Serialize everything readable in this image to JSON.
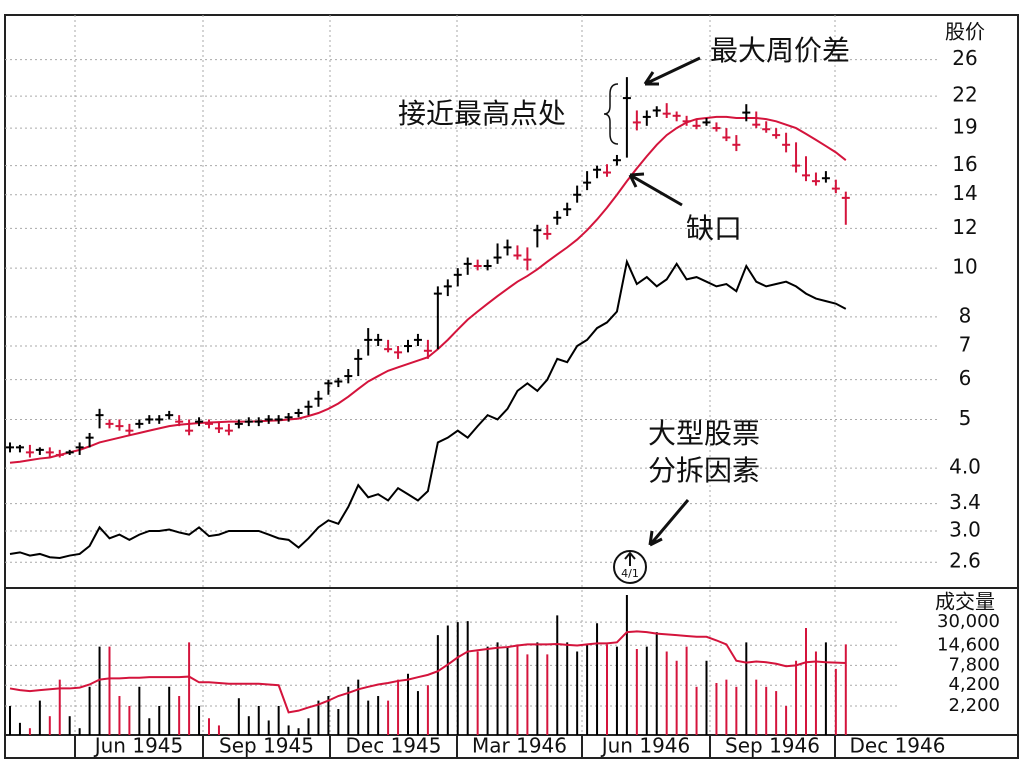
{
  "chart_data": {
    "type": "stock",
    "price_label": "股价",
    "volume_label": "成交量",
    "annotations": {
      "widest_week": "最大周价差",
      "near_high": "接近最高点处",
      "gap": "缺口",
      "split_1": "大型股票",
      "split_2": "分拆因素",
      "split_mark": "4/1"
    },
    "xticks": [
      "Jun 1945",
      "Sep 1945",
      "Dec 1945",
      "Mar 1946",
      "Jun 1946",
      "Sep 1946",
      "Dec 1946"
    ],
    "log_scale": true,
    "grid": true,
    "up_color": "#000000",
    "down_color": "#d4143c",
    "ma_color": "#d4143c",
    "rs_color": "#000000",
    "ylim": [
      2.31,
      31.9
    ],
    "yticks": [
      26,
      22,
      19,
      16,
      14,
      12,
      10,
      8,
      7,
      6,
      5,
      {
        "value": 4,
        "label": "4.0"
      },
      3.4,
      {
        "value": 3,
        "label": "3.0"
      },
      2.6
    ],
    "close": [
      4.4,
      4.4,
      4.3,
      4.35,
      4.3,
      4.25,
      4.3,
      4.4,
      4.6,
      5.1,
      4.9,
      4.85,
      4.75,
      4.9,
      5.0,
      5.0,
      5.1,
      4.95,
      4.75,
      4.95,
      4.9,
      4.8,
      4.75,
      4.9,
      4.95,
      4.95,
      5.0,
      5.0,
      5.05,
      5.15,
      5.3,
      5.5,
      5.9,
      5.95,
      6.1,
      6.6,
      7.2,
      7.2,
      6.9,
      6.8,
      7.0,
      7.2,
      6.85,
      8.9,
      9.2,
      9.7,
      10.2,
      10.1,
      10.1,
      10.5,
      11.0,
      10.6,
      10.4,
      11.9,
      11.7,
      12.6,
      13.1,
      14.0,
      14.8,
      15.7,
      15.5,
      16.4,
      21.8,
      19.5,
      20.0,
      20.6,
      20.3,
      20.1,
      19.6,
      19.2,
      19.5,
      19.0,
      18.2,
      17.6,
      20.4,
      19.3,
      18.9,
      18.4,
      17.6,
      16.0,
      15.3,
      14.9,
      15.1,
      14.4,
      13.8
    ],
    "high": [
      4.5,
      4.45,
      4.45,
      4.4,
      4.4,
      4.35,
      4.35,
      4.5,
      4.7,
      5.25,
      5.0,
      5.0,
      4.9,
      5.0,
      5.1,
      5.1,
      5.2,
      5.1,
      5.0,
      5.05,
      5.0,
      4.95,
      4.9,
      5.0,
      5.05,
      5.05,
      5.1,
      5.1,
      5.15,
      5.25,
      5.45,
      5.7,
      6.0,
      6.05,
      6.3,
      6.9,
      7.6,
      7.4,
      7.2,
      7.0,
      7.2,
      7.4,
      7.2,
      9.2,
      9.5,
      10.0,
      10.5,
      10.4,
      10.4,
      11.2,
      11.4,
      11.1,
      11.0,
      12.2,
      12.2,
      13.0,
      13.5,
      14.6,
      15.6,
      16.0,
      16.1,
      16.8,
      24.0,
      20.6,
      20.6,
      21.0,
      21.3,
      20.5,
      20.1,
      19.8,
      19.9,
      19.5,
      19.0,
      18.4,
      21.2,
      20.5,
      19.6,
      19.0,
      18.6,
      17.8,
      16.7,
      15.5,
      15.6,
      15.0,
      14.2
    ],
    "low": [
      4.3,
      4.3,
      4.2,
      4.25,
      4.2,
      4.2,
      4.25,
      4.25,
      4.4,
      4.8,
      4.8,
      4.75,
      4.65,
      4.8,
      4.9,
      4.9,
      5.0,
      4.85,
      4.65,
      4.85,
      4.8,
      4.7,
      4.65,
      4.8,
      4.85,
      4.85,
      4.9,
      4.9,
      4.95,
      5.05,
      5.1,
      5.3,
      5.6,
      5.8,
      5.9,
      6.1,
      6.7,
      7.0,
      6.8,
      6.6,
      6.8,
      7.0,
      6.6,
      6.9,
      8.8,
      9.2,
      9.7,
      9.9,
      9.9,
      10.2,
      10.6,
      10.4,
      9.9,
      11.0,
      11.4,
      12.2,
      12.7,
      13.5,
      14.3,
      15.1,
      15.2,
      16.0,
      16.6,
      18.8,
      19.2,
      20.0,
      19.9,
      19.6,
      19.2,
      18.9,
      19.2,
      18.7,
      17.9,
      17.1,
      19.6,
      19.0,
      18.6,
      18.1,
      17.0,
      15.5,
      14.9,
      14.6,
      14.8,
      14.1,
      12.2
    ],
    "ma": [
      4.1,
      4.12,
      4.15,
      4.18,
      4.2,
      4.25,
      4.3,
      4.35,
      4.42,
      4.5,
      4.55,
      4.6,
      4.65,
      4.7,
      4.75,
      4.8,
      4.85,
      4.88,
      4.9,
      4.92,
      4.93,
      4.94,
      4.95,
      4.95,
      4.95,
      4.96,
      4.97,
      4.98,
      5.0,
      5.02,
      5.08,
      5.15,
      5.25,
      5.38,
      5.55,
      5.75,
      5.95,
      6.1,
      6.25,
      6.35,
      6.45,
      6.55,
      6.65,
      6.9,
      7.2,
      7.55,
      7.9,
      8.2,
      8.5,
      8.8,
      9.1,
      9.4,
      9.65,
      9.95,
      10.3,
      10.65,
      11.0,
      11.4,
      11.9,
      12.5,
      13.2,
      14.0,
      14.9,
      15.8,
      16.7,
      17.6,
      18.4,
      19.0,
      19.5,
      19.8,
      19.9,
      20.0,
      20.0,
      19.9,
      19.9,
      19.9,
      19.8,
      19.6,
      19.3,
      19.0,
      18.5,
      18.0,
      17.5,
      17.0,
      16.4
    ],
    "rs": [
      2.7,
      2.72,
      2.68,
      2.7,
      2.66,
      2.65,
      2.68,
      2.7,
      2.8,
      3.05,
      2.9,
      2.95,
      2.88,
      2.95,
      3.0,
      3.0,
      3.02,
      2.98,
      2.95,
      3.05,
      2.93,
      2.95,
      3.0,
      3.0,
      3.0,
      3.0,
      2.95,
      2.9,
      2.88,
      2.78,
      2.9,
      3.05,
      3.15,
      3.1,
      3.35,
      3.7,
      3.5,
      3.55,
      3.45,
      3.65,
      3.55,
      3.45,
      3.6,
      4.5,
      4.6,
      4.75,
      4.6,
      4.85,
      5.1,
      5.0,
      5.25,
      5.7,
      5.9,
      5.7,
      6.0,
      6.6,
      6.5,
      7.0,
      7.2,
      7.6,
      7.8,
      8.2,
      10.3,
      9.3,
      9.6,
      9.2,
      9.5,
      10.2,
      9.5,
      9.6,
      9.4,
      9.2,
      9.3,
      9.0,
      10.1,
      9.4,
      9.2,
      9.3,
      9.4,
      9.2,
      8.9,
      8.7,
      8.6,
      8.5,
      8.3
    ],
    "vlim": [
      890,
      87000
    ],
    "vticks": [
      {
        "value": 30000,
        "label": "30,000"
      },
      {
        "value": 14600,
        "label": "14,600"
      },
      {
        "value": 7800,
        "label": "7,800"
      },
      {
        "value": 4200,
        "label": "4,200"
      },
      {
        "value": 2200,
        "label": "2,200"
      }
    ],
    "volume": [
      2200,
      1300,
      1100,
      2600,
      1600,
      5000,
      1600,
      1100,
      4000,
      14000,
      14000,
      3000,
      2200,
      4000,
      1500,
      2200,
      4000,
      3000,
      16000,
      2200,
      1500,
      1200,
      900,
      2800,
      1600,
      2200,
      1400,
      2200,
      1200,
      1100,
      1500,
      2600,
      3000,
      2000,
      4000,
      5000,
      2600,
      3000,
      2600,
      5000,
      6000,
      3500,
      4200,
      20000,
      27000,
      30000,
      31000,
      12000,
      14000,
      16000,
      14000,
      15000,
      11000,
      16000,
      11000,
      37000,
      16000,
      12000,
      15000,
      29000,
      15000,
      14000,
      70000,
      13000,
      14000,
      22000,
      12000,
      9000,
      14000,
      4000,
      9000,
      4500,
      5000,
      4000,
      16000,
      5000,
      4000,
      3500,
      2200,
      9000,
      25000,
      12000,
      16000,
      7000,
      15000
    ],
    "volume_ma": [
      3800,
      3600,
      3500,
      3600,
      3700,
      3800,
      3800,
      3900,
      4300,
      5000,
      5200,
      5200,
      5300,
      5300,
      5400,
      5400,
      5400,
      5400,
      5500,
      4600,
      4600,
      4500,
      4400,
      4400,
      4400,
      4400,
      4300,
      4200,
      1800,
      1900,
      2100,
      2300,
      2600,
      3000,
      3300,
      3700,
      4000,
      4300,
      4500,
      4800,
      5000,
      5400,
      5800,
      6500,
      8000,
      10000,
      12000,
      12500,
      13000,
      13500,
      13800,
      14500,
      15000,
      15000,
      15000,
      15200,
      14800,
      14500,
      15000,
      15500,
      15500,
      16000,
      22000,
      22500,
      22000,
      21000,
      20500,
      20000,
      19500,
      19000,
      19000,
      17000,
      15000,
      9000,
      8500,
      8800,
      8600,
      8200,
      7600,
      7800,
      8600,
      8800,
      8600,
      8500,
      8400
    ]
  }
}
